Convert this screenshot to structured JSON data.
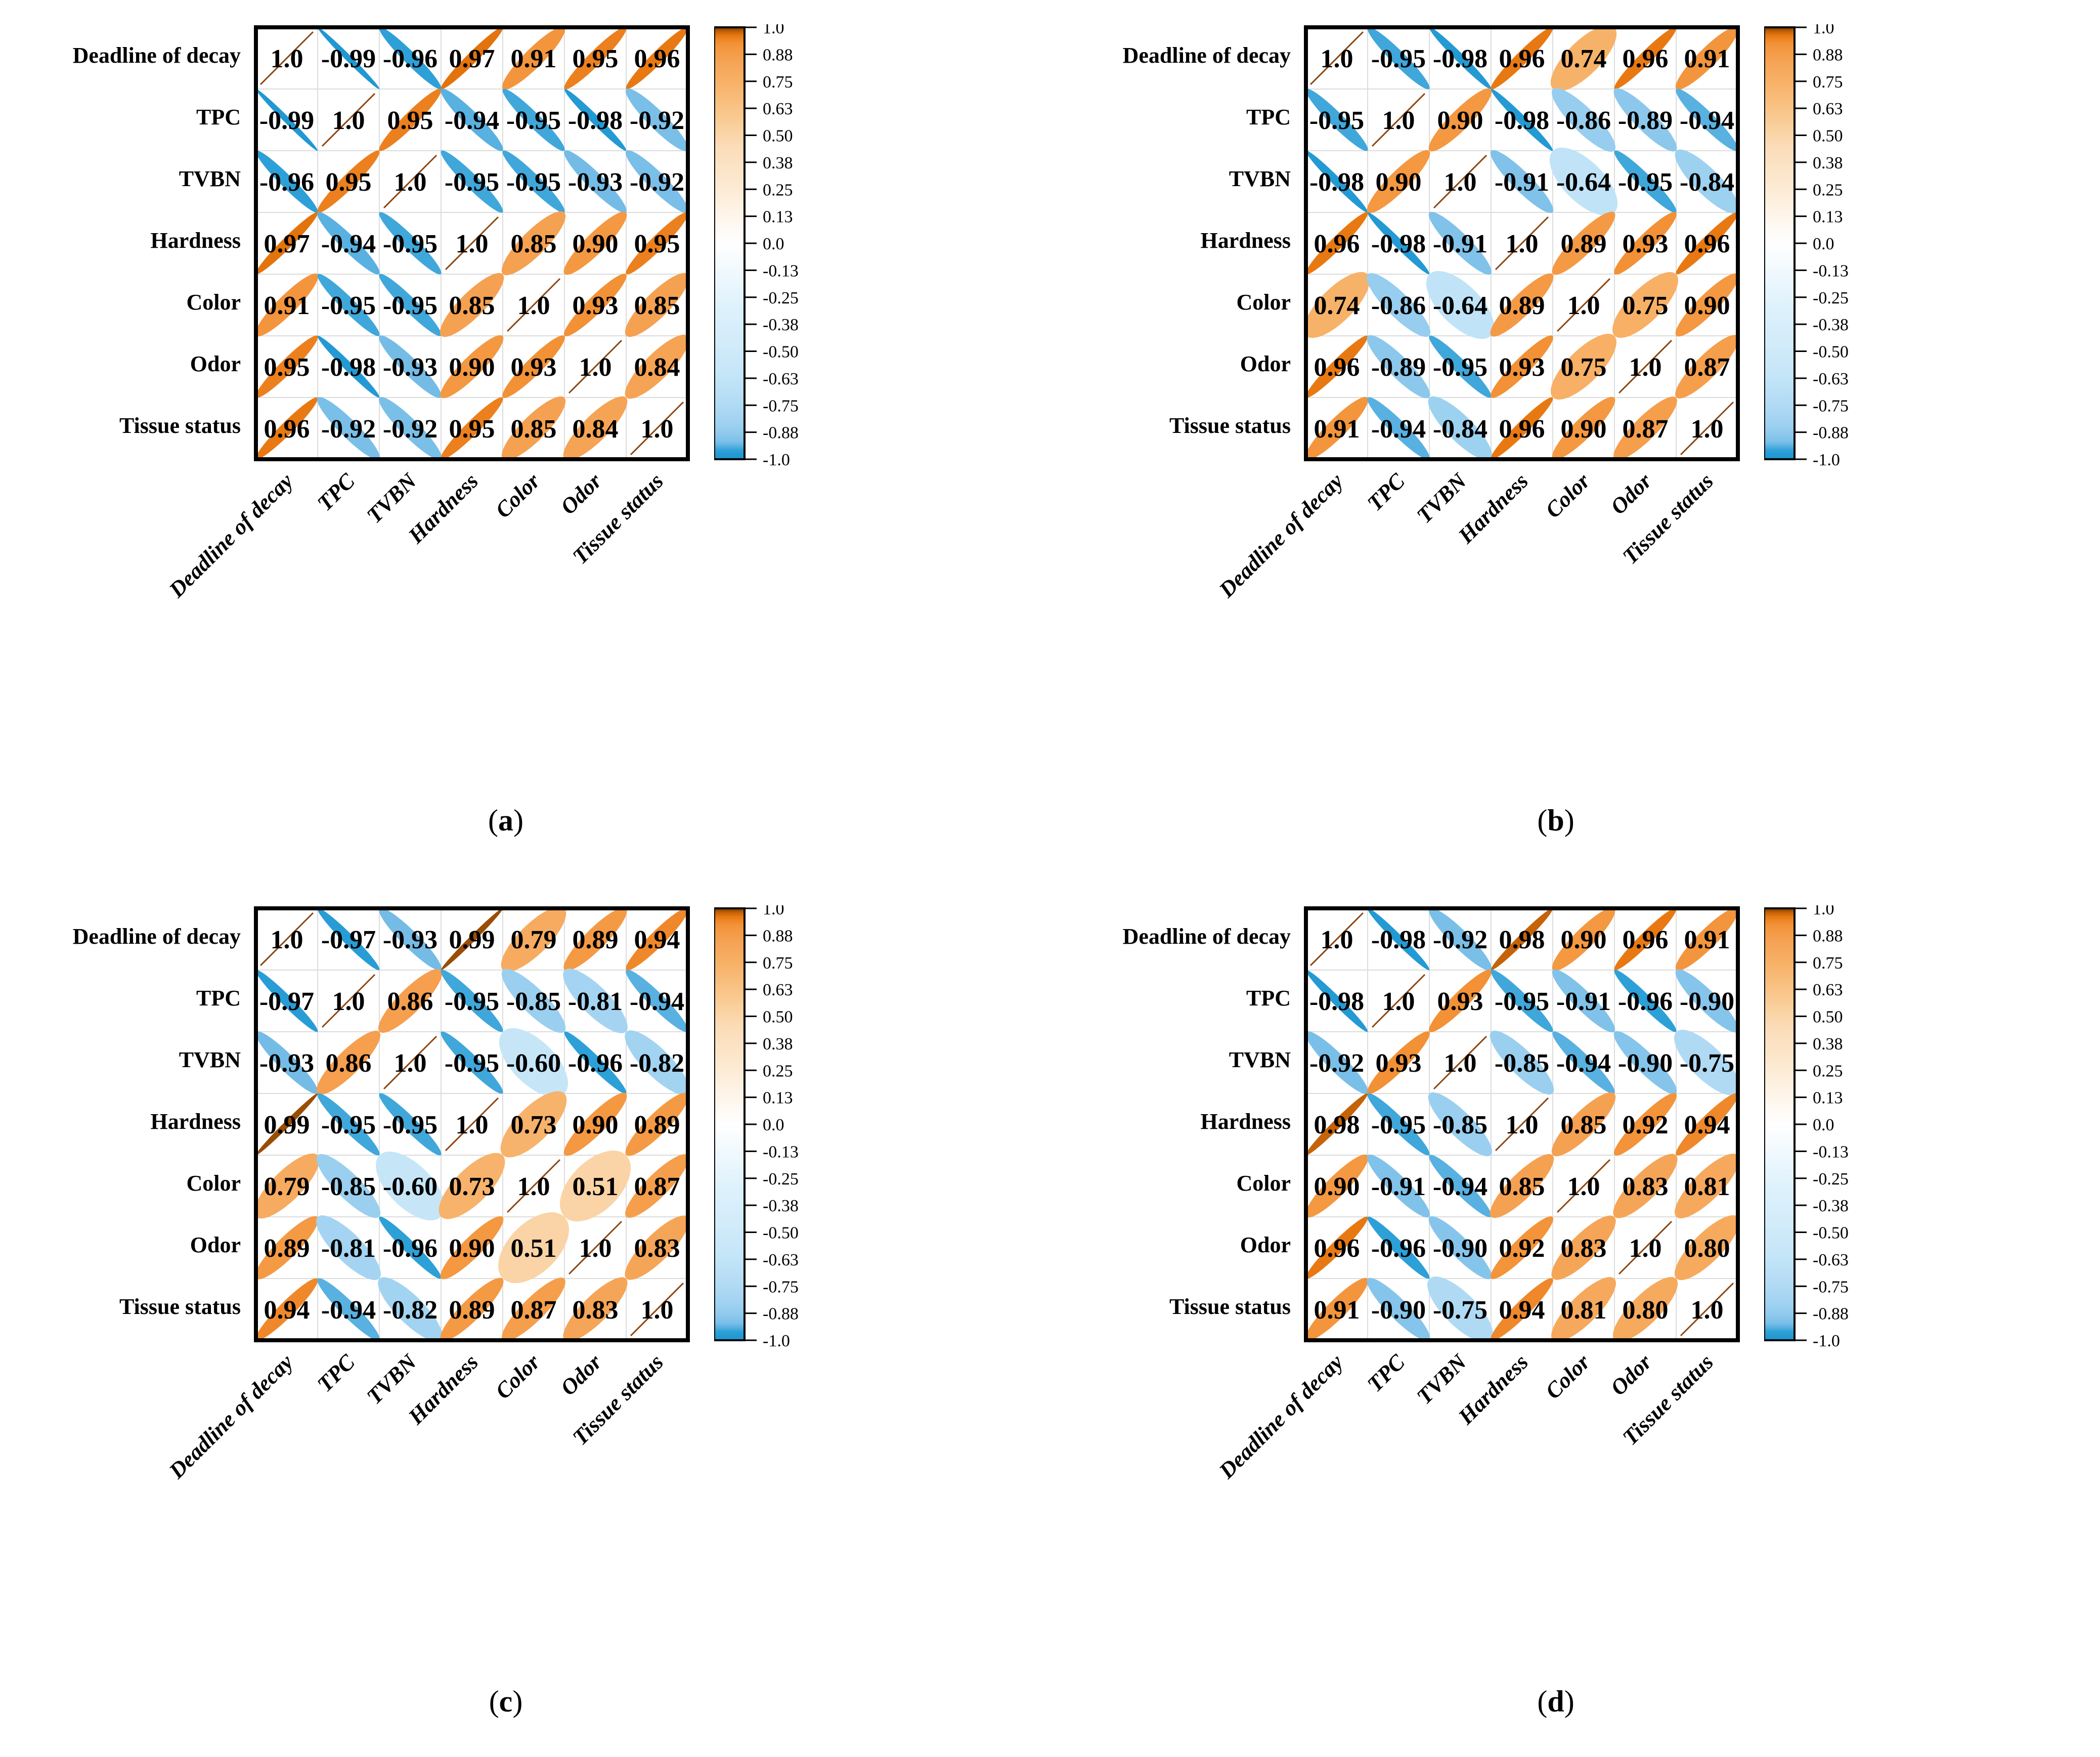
{
  "figure": {
    "variables": [
      "Deadline of decay",
      "TPC",
      "TVBN",
      "Hardness",
      "Color",
      "Odor",
      "Tissue status"
    ],
    "colorbar": {
      "tick_labels": [
        "1.0",
        "0.88",
        "0.75",
        "0.63",
        "0.50",
        "0.38",
        "0.25",
        "0.13",
        "0.0",
        "-0.13",
        "-0.25",
        "-0.38",
        "-0.50",
        "-0.63",
        "-0.75",
        "-0.88",
        "-1.0"
      ],
      "tick_values": [
        1.0,
        0.875,
        0.75,
        0.625,
        0.5,
        0.375,
        0.25,
        0.125,
        0,
        -0.125,
        -0.25,
        -0.375,
        -0.5,
        -0.625,
        -0.75,
        -0.875,
        -1.0
      ],
      "range": [
        -1.0,
        1.0
      ]
    },
    "colors": {
      "positive_strong": "#e87912",
      "positive_dark": "#7c3b03",
      "negative_strong": "#1e96d1",
      "negative_light": "#a7d5f2",
      "diagonal_line": "#8c4510",
      "gridline": "#dcdcdc",
      "frame": "#000000"
    },
    "panels": [
      {
        "id": "a",
        "caption_open": "(",
        "caption_letter": "a",
        "caption_close": ")"
      },
      {
        "id": "b",
        "caption_open": "(",
        "caption_letter": "b",
        "caption_close": ")"
      },
      {
        "id": "c",
        "caption_open": "(",
        "caption_letter": "c",
        "caption_close": ")"
      },
      {
        "id": "d",
        "caption_open": "(",
        "caption_letter": "d",
        "caption_close": ")"
      }
    ]
  },
  "chart_data": [
    {
      "type": "heatmap",
      "subtype": "correlation-ellipse-matrix",
      "panel": "a",
      "title": "(a)",
      "categories": [
        "Deadline of decay",
        "TPC",
        "TVBN",
        "Hardness",
        "Color",
        "Odor",
        "Tissue status"
      ],
      "matrix": [
        [
          1.0,
          -0.99,
          -0.96,
          0.97,
          0.91,
          0.95,
          0.96
        ],
        [
          -0.99,
          1.0,
          0.95,
          -0.94,
          -0.95,
          -0.98,
          -0.92
        ],
        [
          -0.96,
          0.95,
          1.0,
          -0.95,
          -0.95,
          -0.93,
          -0.92
        ],
        [
          0.97,
          -0.94,
          -0.95,
          1.0,
          0.85,
          0.9,
          0.95
        ],
        [
          0.91,
          -0.95,
          -0.95,
          0.85,
          1.0,
          0.93,
          0.85
        ],
        [
          0.95,
          -0.98,
          -0.93,
          0.9,
          0.93,
          1.0,
          0.84
        ],
        [
          0.96,
          -0.92,
          -0.92,
          0.95,
          0.85,
          0.84,
          1.0
        ]
      ],
      "colorbar_range": [
        -1.0,
        1.0
      ],
      "legend_position": "right",
      "grid": true
    },
    {
      "type": "heatmap",
      "subtype": "correlation-ellipse-matrix",
      "panel": "b",
      "title": "(b)",
      "categories": [
        "Deadline of decay",
        "TPC",
        "TVBN",
        "Hardness",
        "Color",
        "Odor",
        "Tissue status"
      ],
      "matrix": [
        [
          1.0,
          -0.95,
          -0.98,
          0.96,
          0.74,
          0.96,
          0.91
        ],
        [
          -0.95,
          1.0,
          0.9,
          -0.98,
          -0.86,
          -0.89,
          -0.94
        ],
        [
          -0.98,
          0.9,
          1.0,
          -0.91,
          -0.64,
          -0.95,
          -0.84
        ],
        [
          0.96,
          -0.98,
          -0.91,
          1.0,
          0.89,
          0.93,
          0.96
        ],
        [
          0.74,
          -0.86,
          -0.64,
          0.89,
          1.0,
          0.75,
          0.9
        ],
        [
          0.96,
          -0.89,
          -0.95,
          0.93,
          0.75,
          1.0,
          0.87
        ],
        [
          0.91,
          -0.94,
          -0.84,
          0.96,
          0.9,
          0.87,
          1.0
        ]
      ],
      "colorbar_range": [
        -1.0,
        1.0
      ],
      "legend_position": "right",
      "grid": true
    },
    {
      "type": "heatmap",
      "subtype": "correlation-ellipse-matrix",
      "panel": "c",
      "title": "(c)",
      "categories": [
        "Deadline of decay",
        "TPC",
        "TVBN",
        "Hardness",
        "Color",
        "Odor",
        "Tissue status"
      ],
      "matrix": [
        [
          1.0,
          -0.97,
          -0.93,
          0.99,
          0.79,
          0.89,
          0.94
        ],
        [
          -0.97,
          1.0,
          0.86,
          -0.95,
          -0.85,
          -0.81,
          -0.94
        ],
        [
          -0.93,
          0.86,
          1.0,
          -0.95,
          -0.6,
          -0.96,
          -0.82
        ],
        [
          0.99,
          -0.95,
          -0.95,
          1.0,
          0.73,
          0.9,
          0.89
        ],
        [
          0.79,
          -0.85,
          -0.6,
          0.73,
          1.0,
          0.51,
          0.87
        ],
        [
          0.89,
          -0.81,
          -0.96,
          0.9,
          0.51,
          1.0,
          0.83
        ],
        [
          0.94,
          -0.94,
          -0.82,
          0.89,
          0.87,
          0.83,
          1.0
        ]
      ],
      "colorbar_range": [
        -1.0,
        1.0
      ],
      "legend_position": "right",
      "grid": true
    },
    {
      "type": "heatmap",
      "subtype": "correlation-ellipse-matrix",
      "panel": "d",
      "title": "(d)",
      "categories": [
        "Deadline of decay",
        "TPC",
        "TVBN",
        "Hardness",
        "Color",
        "Odor",
        "Tissue status"
      ],
      "matrix": [
        [
          1.0,
          -0.98,
          -0.92,
          0.98,
          0.9,
          0.96,
          0.91
        ],
        [
          -0.98,
          1.0,
          0.93,
          -0.95,
          -0.91,
          -0.96,
          -0.9
        ],
        [
          -0.92,
          0.93,
          1.0,
          -0.85,
          -0.94,
          -0.9,
          -0.75
        ],
        [
          0.98,
          -0.95,
          -0.85,
          1.0,
          0.85,
          0.92,
          0.94
        ],
        [
          0.9,
          -0.91,
          -0.94,
          0.85,
          1.0,
          0.83,
          0.81
        ],
        [
          0.96,
          -0.96,
          -0.9,
          0.92,
          0.83,
          1.0,
          0.8
        ],
        [
          0.91,
          -0.9,
          -0.75,
          0.94,
          0.81,
          0.8,
          1.0
        ]
      ],
      "colorbar_range": [
        -1.0,
        1.0
      ],
      "legend_position": "right",
      "grid": true
    }
  ]
}
